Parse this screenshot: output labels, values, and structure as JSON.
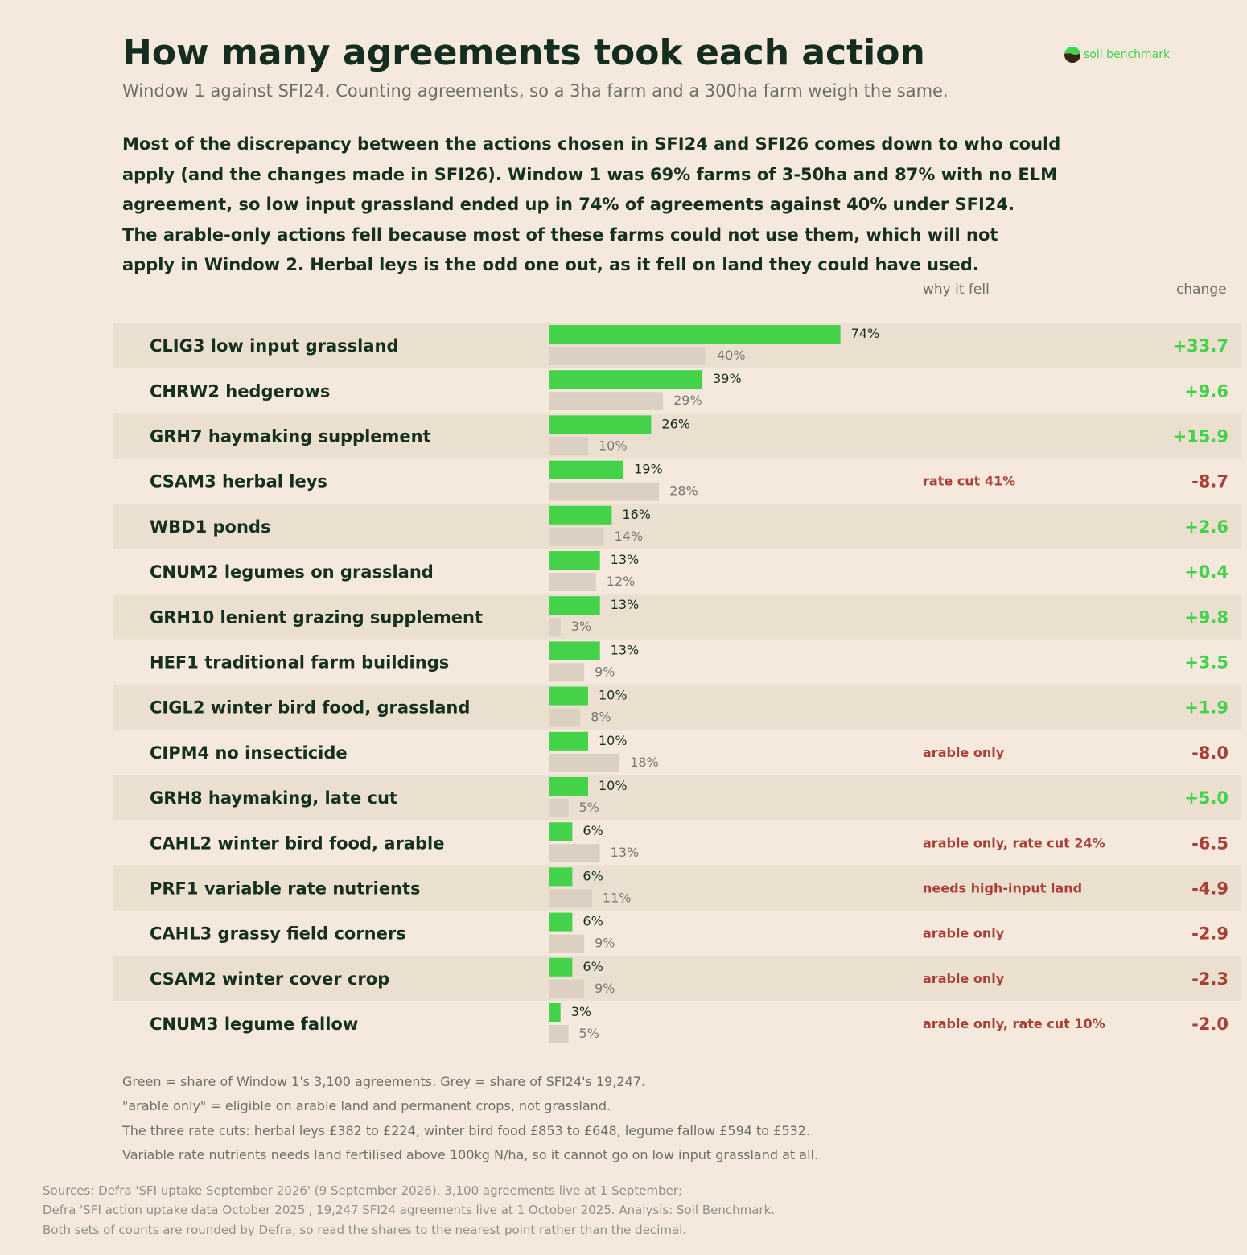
{
  "header": {
    "title": "How many agreements took each action",
    "subtitle": "Window 1 against SFI24. Counting agreements, so a 3ha farm and a 300ha farm weigh the same.",
    "logo_text": "soil benchmark"
  },
  "intro": [
    "Most of the discrepancy between the actions chosen in SFI24 and SFI26 comes down to who could",
    "apply (and the changes made in SFI26). Window 1 was 69% farms of 3-50ha and 87% with no ELM",
    "agreement, so low input grassland ended up in 74% of agreements against 40% under SFI24.",
    "The arable-only actions fell because most of these farms could not use them, which will not",
    "apply in Window 2. Herbal leys is the odd one out, as it fell on land they could have used."
  ],
  "columns": {
    "reason": "why it fell",
    "change": "change"
  },
  "colors": {
    "window1": "#44d24a",
    "sfi24": "#dbd0c1",
    "positive": "#44d24a",
    "negative": "#a93f35",
    "row_band": "#ebe0d0"
  },
  "chart_data": {
    "type": "bar",
    "orientation": "horizontal",
    "unit": "%",
    "xlim": [
      0,
      100
    ],
    "series_keys": [
      "window1",
      "sfi24"
    ],
    "rows": [
      {
        "label": "CLIG3 low input grassland",
        "window1": 74,
        "sfi24": 40,
        "window1_label": "74%",
        "sfi24_label": "40%",
        "reason": "",
        "change": "+33.7"
      },
      {
        "label": "CHRW2 hedgerows",
        "window1": 39,
        "sfi24": 29,
        "window1_label": "39%",
        "sfi24_label": "29%",
        "reason": "",
        "change": "+9.6"
      },
      {
        "label": "GRH7 haymaking supplement",
        "window1": 26,
        "sfi24": 10,
        "window1_label": "26%",
        "sfi24_label": "10%",
        "reason": "",
        "change": "+15.9"
      },
      {
        "label": "CSAM3 herbal leys",
        "window1": 19,
        "sfi24": 28,
        "window1_label": "19%",
        "sfi24_label": "28%",
        "reason": "rate cut 41%",
        "change": "-8.7"
      },
      {
        "label": "WBD1 ponds",
        "window1": 16,
        "sfi24": 14,
        "window1_label": "16%",
        "sfi24_label": "14%",
        "reason": "",
        "change": "+2.6"
      },
      {
        "label": "CNUM2 legumes on grassland",
        "window1": 13,
        "sfi24": 12,
        "window1_label": "13%",
        "sfi24_label": "12%",
        "reason": "",
        "change": "+0.4"
      },
      {
        "label": "GRH10 lenient grazing supplement",
        "window1": 13,
        "sfi24": 3,
        "window1_label": "13%",
        "sfi24_label": "3%",
        "reason": "",
        "change": "+9.8"
      },
      {
        "label": "HEF1 traditional farm buildings",
        "window1": 13,
        "sfi24": 9,
        "window1_label": "13%",
        "sfi24_label": "9%",
        "reason": "",
        "change": "+3.5"
      },
      {
        "label": "CIGL2 winter bird food, grassland",
        "window1": 10,
        "sfi24": 8,
        "window1_label": "10%",
        "sfi24_label": "8%",
        "reason": "",
        "change": "+1.9"
      },
      {
        "label": "CIPM4 no insecticide",
        "window1": 10,
        "sfi24": 18,
        "window1_label": "10%",
        "sfi24_label": "18%",
        "reason": "arable only",
        "change": "-8.0"
      },
      {
        "label": "GRH8 haymaking, late cut",
        "window1": 10,
        "sfi24": 5,
        "window1_label": "10%",
        "sfi24_label": "5%",
        "reason": "",
        "change": "+5.0"
      },
      {
        "label": "CAHL2 winter bird food, arable",
        "window1": 6,
        "sfi24": 13,
        "window1_label": "6%",
        "sfi24_label": "13%",
        "reason": "arable only, rate cut 24%",
        "change": "-6.5"
      },
      {
        "label": "PRF1 variable rate nutrients",
        "window1": 6,
        "sfi24": 11,
        "window1_label": "6%",
        "sfi24_label": "11%",
        "reason": "needs high-input land",
        "change": "-4.9"
      },
      {
        "label": "CAHL3 grassy field corners",
        "window1": 6,
        "sfi24": 9,
        "window1_label": "6%",
        "sfi24_label": "9%",
        "reason": "arable only",
        "change": "-2.9"
      },
      {
        "label": "CSAM2 winter cover crop",
        "window1": 6,
        "sfi24": 9,
        "window1_label": "6%",
        "sfi24_label": "9%",
        "reason": "arable only",
        "change": "-2.3"
      },
      {
        "label": "CNUM3 legume fallow",
        "window1": 3,
        "sfi24": 5,
        "window1_label": "3%",
        "sfi24_label": "5%",
        "reason": "arable only, rate cut 10%",
        "change": "-2.0"
      }
    ]
  },
  "notes": [
    "Green = share of Window 1's 3,100 agreements.   Grey = share of SFI24's 19,247.",
    "\"arable only\" = eligible on arable land and permanent crops, not grassland.",
    "The three rate cuts: herbal leys £382 to £224, winter bird food £853 to £648, legume fallow £594 to £532.",
    "Variable rate nutrients needs land fertilised above 100kg N/ha, so it cannot go on low input grassland at all."
  ],
  "sources": [
    "Sources: Defra 'SFI uptake September 2026' (9 September 2026), 3,100 agreements live at 1 September;",
    "Defra 'SFI action uptake data October 2025', 19,247 SFI24 agreements live at 1 October 2025. Analysis: Soil Benchmark.",
    "Both sets of counts are rounded by Defra, so read the shares to the nearest point rather than the decimal."
  ]
}
